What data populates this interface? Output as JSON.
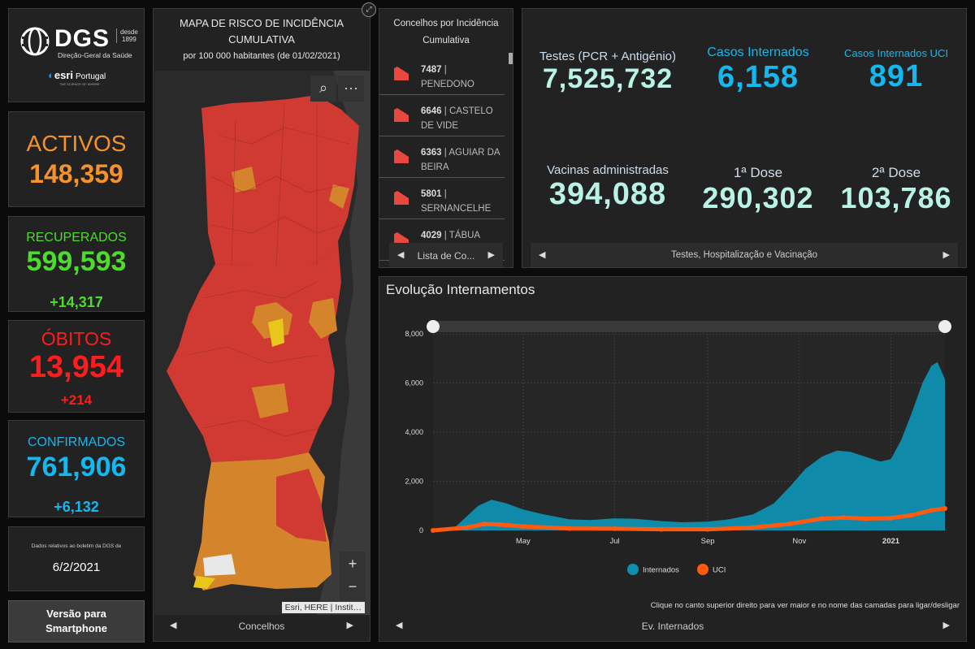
{
  "logo": {
    "name": "DGS",
    "since_label": "desde",
    "since_year": "1899",
    "subtitle": "Direção-Geral da Saúde",
    "partner": "esri",
    "partner_country": "Portugal",
    "partner_tagline": "THE SCIENCE OF WHERE"
  },
  "stats": {
    "activos": {
      "title": "ACTIVOS",
      "value": "148,359",
      "color": "#f5922a"
    },
    "recuperados": {
      "title": "RECUPERADOS",
      "value": "599,593",
      "delta": "+14,317",
      "color": "#4ddc2e"
    },
    "obitos": {
      "title": "ÓBITOS",
      "value": "13,954",
      "delta": "+214",
      "color": "#ff1c1c"
    },
    "confirmados": {
      "title": "CONFIRMADOS",
      "value": "761,906",
      "delta": "+6,132",
      "color": "#14b8ef"
    },
    "bulletin": {
      "note": "Dados relativos ao boletim da DGS de",
      "date": "6/2/2021"
    }
  },
  "smartphone_button": {
    "line1": "Versão para",
    "line2": "Smartphone"
  },
  "map": {
    "title_line1": "MAPA DE RISCO DE INCIDÊNCIA",
    "title_line2": "CUMULATIVA",
    "subtitle": "por 100 000 habitantes (de 01/02/2021)",
    "attribution": "Esri, HERE | Instit…",
    "zoom_in": "+",
    "zoom_out": "−",
    "more": "···",
    "footer_label": "Concelhos"
  },
  "list": {
    "title_line1": "Concelhos por Incidência",
    "title_line2": "Cumulativa",
    "items": [
      {
        "value": "7487",
        "name": "PENEDONO"
      },
      {
        "value": "6646",
        "name": "CASTELO DE VIDE"
      },
      {
        "value": "6363",
        "name": "AGUIAR DA BEIRA"
      },
      {
        "value": "5801",
        "name": "SERNANCELHE"
      },
      {
        "value": "4029",
        "name": "TÁBUA"
      }
    ],
    "footer_label": "Lista de Co..."
  },
  "kpis": {
    "testes": {
      "label": "Testes (PCR + Antigénio)",
      "value": "7,525,732"
    },
    "internados": {
      "label": "Casos Internados",
      "value": "6,158"
    },
    "uci": {
      "label": "Casos Internados UCI",
      "value": "891"
    },
    "vacinas": {
      "label": "Vacinas administradas",
      "value": "394,088"
    },
    "dose1": {
      "label": "1ª Dose",
      "value": "290,302"
    },
    "dose2": {
      "label": "2ª Dose",
      "value": "103,786"
    },
    "footer_label": "Testes, Hospitalização e Vacinação",
    "colors": {
      "neutral": "#b9f3e6",
      "blue": "#14b8ef"
    }
  },
  "chart": {
    "title": "Evolução Internamentos",
    "note": "Clique no canto superior direito para ver maior e no nome das camadas para ligar/desligar",
    "footer_label": "Ev. Internados"
  },
  "chart_data": {
    "type": "area",
    "x_tick_labels": [
      "May",
      "Jul",
      "Sep",
      "Nov",
      "2021"
    ],
    "y_tick_labels": [
      "0",
      "2,000",
      "4,000",
      "6,000",
      "8,000"
    ],
    "ylim": [
      0,
      8000
    ],
    "xlim": [
      "2020-03-02",
      "2021-02-06"
    ],
    "legend_position": "bottom",
    "grid": true,
    "series": [
      {
        "name": "Internados",
        "kind": "area",
        "color": "#0f8fb0",
        "points": [
          [
            "2020-03-02",
            0
          ],
          [
            "2020-03-16",
            100
          ],
          [
            "2020-03-25",
            600
          ],
          [
            "2020-04-01",
            1000
          ],
          [
            "2020-04-10",
            1250
          ],
          [
            "2020-04-20",
            1100
          ],
          [
            "2020-05-01",
            850
          ],
          [
            "2020-05-15",
            650
          ],
          [
            "2020-06-01",
            450
          ],
          [
            "2020-06-15",
            420
          ],
          [
            "2020-07-01",
            490
          ],
          [
            "2020-07-15",
            470
          ],
          [
            "2020-08-01",
            380
          ],
          [
            "2020-08-15",
            330
          ],
          [
            "2020-09-01",
            360
          ],
          [
            "2020-09-15",
            450
          ],
          [
            "2020-10-01",
            650
          ],
          [
            "2020-10-15",
            1100
          ],
          [
            "2020-10-26",
            1800
          ],
          [
            "2020-11-05",
            2500
          ],
          [
            "2020-11-16",
            3000
          ],
          [
            "2020-11-26",
            3250
          ],
          [
            "2020-12-05",
            3200
          ],
          [
            "2020-12-15",
            3000
          ],
          [
            "2020-12-25",
            2800
          ],
          [
            "2021-01-01",
            2900
          ],
          [
            "2021-01-08",
            3700
          ],
          [
            "2021-01-15",
            4800
          ],
          [
            "2021-01-22",
            6000
          ],
          [
            "2021-01-28",
            6700
          ],
          [
            "2021-02-01",
            6850
          ],
          [
            "2021-02-06",
            6150
          ]
        ]
      },
      {
        "name": "UCI",
        "kind": "line",
        "color": "#ff5a10",
        "points": [
          [
            "2020-03-02",
            0
          ],
          [
            "2020-03-25",
            120
          ],
          [
            "2020-04-05",
            260
          ],
          [
            "2020-04-15",
            240
          ],
          [
            "2020-05-01",
            160
          ],
          [
            "2020-06-01",
            80
          ],
          [
            "2020-07-01",
            70
          ],
          [
            "2020-08-01",
            45
          ],
          [
            "2020-09-01",
            45
          ],
          [
            "2020-10-01",
            110
          ],
          [
            "2020-10-26",
            270
          ],
          [
            "2020-11-16",
            480
          ],
          [
            "2020-12-01",
            520
          ],
          [
            "2020-12-15",
            480
          ],
          [
            "2021-01-01",
            500
          ],
          [
            "2021-01-15",
            620
          ],
          [
            "2021-01-28",
            820
          ],
          [
            "2021-02-06",
            891
          ]
        ]
      }
    ]
  }
}
